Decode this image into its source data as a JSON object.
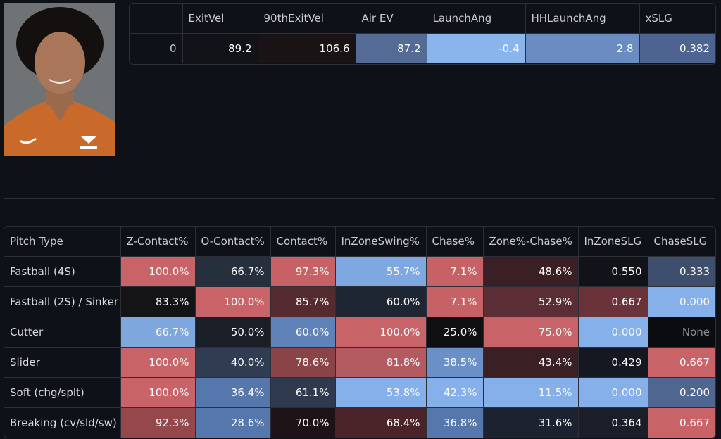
{
  "summary": {
    "headers": [
      "",
      "ExitVel",
      "90thExitVel",
      "Air EV",
      "LaunchAng",
      "HHLaunchAng",
      "xSLG"
    ],
    "row": {
      "index": "0",
      "cells": [
        {
          "v": "89.2",
          "bg": "#111318"
        },
        {
          "v": "106.6",
          "bg": "#1a1315"
        },
        {
          "v": "87.2",
          "bg": "#536b95"
        },
        {
          "v": "-0.4",
          "bg": "#89b4ec"
        },
        {
          "v": "2.8",
          "bg": "#6a8cc0"
        },
        {
          "v": "0.382",
          "bg": "#4d6390"
        }
      ]
    }
  },
  "pitch_table": {
    "headers": [
      "Pitch Type",
      "Z-Contact%",
      "O-Contact%",
      "Contact%",
      "InZoneSwing%",
      "Chase%",
      "Zone%-Chase%",
      "InZoneSLG",
      "ChaseSLG"
    ],
    "rows": [
      {
        "label": "Fastball (4S)",
        "cells": [
          {
            "v": "100.0%",
            "bg": "#c86468"
          },
          {
            "v": "66.7%",
            "bg": "#26303d"
          },
          {
            "v": "97.3%",
            "bg": "#c66266"
          },
          {
            "v": "55.7%",
            "bg": "#7fa8e0"
          },
          {
            "v": "7.1%",
            "bg": "#c66266"
          },
          {
            "v": "48.6%",
            "bg": "#3a1f24"
          },
          {
            "v": "0.550",
            "bg": "#111318"
          },
          {
            "v": "0.333",
            "bg": "#3e4f6e"
          }
        ]
      },
      {
        "label": "Fastball (2S) / Sinker",
        "cells": [
          {
            "v": "83.3%",
            "bg": "#141416"
          },
          {
            "v": "100.0%",
            "bg": "#c86468"
          },
          {
            "v": "85.7%",
            "bg": "#552b30"
          },
          {
            "v": "60.0%",
            "bg": "#1f2633"
          },
          {
            "v": "7.1%",
            "bg": "#c66266"
          },
          {
            "v": "52.9%",
            "bg": "#5a2e34"
          },
          {
            "v": "0.667",
            "bg": "#6a3339"
          },
          {
            "v": "0.000",
            "bg": "#85b0ea"
          }
        ]
      },
      {
        "label": "Cutter",
        "cells": [
          {
            "v": "66.7%",
            "bg": "#7ea7de"
          },
          {
            "v": "50.0%",
            "bg": "#1a1e27"
          },
          {
            "v": "60.0%",
            "bg": "#5f82b8"
          },
          {
            "v": "100.0%",
            "bg": "#c86468"
          },
          {
            "v": "25.0%",
            "bg": "#0f0f12"
          },
          {
            "v": "75.0%",
            "bg": "#c86468"
          },
          {
            "v": "0.000",
            "bg": "#85b0ea"
          },
          {
            "v": "None",
            "bg": "#0b0c10",
            "none": true
          }
        ]
      },
      {
        "label": "Slider",
        "cells": [
          {
            "v": "100.0%",
            "bg": "#c86468"
          },
          {
            "v": "40.0%",
            "bg": "#2f3c52"
          },
          {
            "v": "78.6%",
            "bg": "#8a4347"
          },
          {
            "v": "81.8%",
            "bg": "#b35b60"
          },
          {
            "v": "38.5%",
            "bg": "#6b90c8"
          },
          {
            "v": "43.4%",
            "bg": "#3a2025"
          },
          {
            "v": "0.429",
            "bg": "#151820"
          },
          {
            "v": "0.667",
            "bg": "#c86468"
          }
        ]
      },
      {
        "label": "Soft (chg/splt)",
        "cells": [
          {
            "v": "100.0%",
            "bg": "#c86468"
          },
          {
            "v": "36.4%",
            "bg": "#5677ac"
          },
          {
            "v": "61.1%",
            "bg": "#2f3a4f"
          },
          {
            "v": "53.8%",
            "bg": "#85b0ea"
          },
          {
            "v": "42.3%",
            "bg": "#85b0ea"
          },
          {
            "v": "11.5%",
            "bg": "#85b0ea"
          },
          {
            "v": "0.000",
            "bg": "#85b0ea"
          },
          {
            "v": "0.200",
            "bg": "#4f6691"
          }
        ]
      },
      {
        "label": "Breaking (cv/sld/sw)",
        "cells": [
          {
            "v": "92.3%",
            "bg": "#95474c"
          },
          {
            "v": "28.6%",
            "bg": "#5677ac"
          },
          {
            "v": "70.0%",
            "bg": "#1e1316"
          },
          {
            "v": "68.4%",
            "bg": "#4a2429"
          },
          {
            "v": "36.8%",
            "bg": "#5677ac"
          },
          {
            "v": "31.6%",
            "bg": "#1c2230"
          },
          {
            "v": "0.364",
            "bg": "#1a1e28"
          },
          {
            "v": "0.667",
            "bg": "#c86468"
          }
        ]
      }
    ]
  }
}
